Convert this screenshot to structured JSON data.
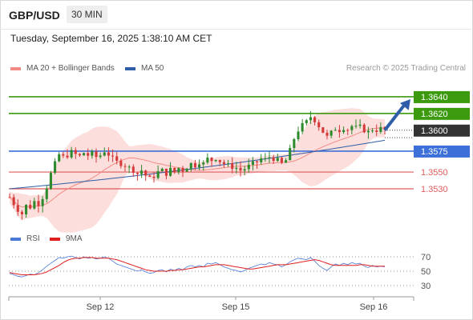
{
  "header": {
    "symbol": "GBP/USD",
    "timeframe": "30 MIN"
  },
  "datetime": "Tuesday, September 16, 2025 1:38:10 AM CET",
  "legend": {
    "ma20_label": "MA 20 + Bollinger Bands",
    "ma50_label": "MA 50",
    "credit": "Research © 2025 Trading Central",
    "rsi_label": "RSI",
    "rsi9_label": "9MA"
  },
  "colors": {
    "bull": "#2d8a2d",
    "bear": "#d43a3a",
    "resistance": "#3c9a0e",
    "support": "#3c6fd8",
    "level_red": "#e05b5b",
    "ma20": "#f38a84",
    "ma50": "#2e5ea8",
    "band": "#fbd3d0",
    "rsi": "#4d79d6",
    "rsi9": "#e02020",
    "current": "#333333",
    "arrow": "#2e5ea8"
  },
  "chart_data": [
    {
      "type": "candlestick",
      "xlabel": "",
      "ylabel": "",
      "x_ticks": [
        "Sep 12",
        "Sep 15",
        "Sep 16"
      ],
      "ylim": [
        1.3486,
        1.366
      ],
      "current_price": 1.36,
      "levels": [
        {
          "value": 1.364,
          "label": "1.3640",
          "kind": "resistance"
        },
        {
          "value": 1.362,
          "label": "1.3620",
          "kind": "resistance"
        },
        {
          "value": 1.3575,
          "label": "1.3575",
          "kind": "pivot"
        },
        {
          "value": 1.355,
          "label": "1.3550",
          "kind": "support"
        },
        {
          "value": 1.353,
          "label": "1.3530",
          "kind": "support"
        }
      ],
      "close_path": [
        1.352,
        1.3512,
        1.3505,
        1.35,
        1.351,
        1.3508,
        1.3515,
        1.3512,
        1.352,
        1.3532,
        1.3548,
        1.356,
        1.3571,
        1.3568,
        1.357,
        1.3574,
        1.3571,
        1.3569,
        1.3573,
        1.357,
        1.3572,
        1.3568,
        1.357,
        1.3575,
        1.3571,
        1.3566,
        1.3562,
        1.356,
        1.3558,
        1.3555,
        1.3552,
        1.3548,
        1.3552,
        1.3546,
        1.3542,
        1.3545,
        1.355,
        1.3552,
        1.3548,
        1.3553,
        1.355,
        1.3555,
        1.3552,
        1.3556,
        1.356,
        1.3558,
        1.3562,
        1.356,
        1.3566,
        1.3564,
        1.3567,
        1.3563,
        1.356,
        1.3558,
        1.3556,
        1.3555,
        1.3552,
        1.3554,
        1.3557,
        1.356,
        1.3562,
        1.3566,
        1.3565,
        1.3568,
        1.3566,
        1.3564,
        1.356,
        1.3564,
        1.3576,
        1.359,
        1.36,
        1.3606,
        1.361,
        1.3616,
        1.3612,
        1.3605,
        1.3598,
        1.3592,
        1.3597,
        1.3602,
        1.36,
        1.3603,
        1.3601,
        1.3605,
        1.3603,
        1.3604,
        1.36,
        1.3598,
        1.3601,
        1.36,
        1.3602,
        1.36
      ],
      "ma50": {
        "start": 1.353,
        "end": 1.3588
      },
      "arrow_target": 1.3637
    },
    {
      "type": "line",
      "title": "RSI",
      "ylim": [
        20,
        80
      ],
      "y_ticks": [
        70,
        50,
        30
      ],
      "series": [
        {
          "name": "RSI",
          "values": [
            47,
            45,
            43,
            42,
            44,
            46,
            45,
            48,
            52,
            57,
            61,
            65,
            69,
            68,
            70,
            71,
            69,
            67,
            70,
            68,
            69,
            67,
            68,
            70,
            68,
            64,
            60,
            58,
            56,
            54,
            52,
            50,
            52,
            49,
            47,
            48,
            51,
            52,
            49,
            53,
            51,
            54,
            52,
            56,
            58,
            56,
            58,
            56,
            61,
            60,
            62,
            59,
            56,
            54,
            52,
            51,
            49,
            51,
            54,
            56,
            58,
            60,
            59,
            62,
            60,
            59,
            56,
            59,
            63,
            66,
            68,
            67,
            66,
            69,
            64,
            58,
            54,
            51,
            56,
            60,
            58,
            61,
            59,
            62,
            60,
            61,
            57,
            55,
            58,
            56,
            57,
            56
          ]
        },
        {
          "name": "9MA",
          "values": [
            48,
            47,
            46,
            45,
            45,
            45,
            45,
            46,
            47,
            49,
            52,
            55,
            58,
            62,
            65,
            67,
            68,
            68,
            69,
            69,
            69,
            68,
            68,
            68,
            68,
            67,
            66,
            64,
            62,
            60,
            58,
            56,
            54,
            52,
            51,
            50,
            50,
            50,
            50,
            51,
            51,
            52,
            52,
            53,
            54,
            55,
            56,
            56,
            57,
            58,
            59,
            59,
            59,
            58,
            57,
            56,
            55,
            54,
            53,
            53,
            54,
            55,
            56,
            57,
            58,
            59,
            59,
            59,
            60,
            61,
            62,
            63,
            64,
            65,
            66,
            65,
            63,
            61,
            59,
            58,
            58,
            58,
            58,
            58,
            58,
            59,
            59,
            58,
            57,
            57,
            57,
            57
          ]
        }
      ]
    }
  ]
}
